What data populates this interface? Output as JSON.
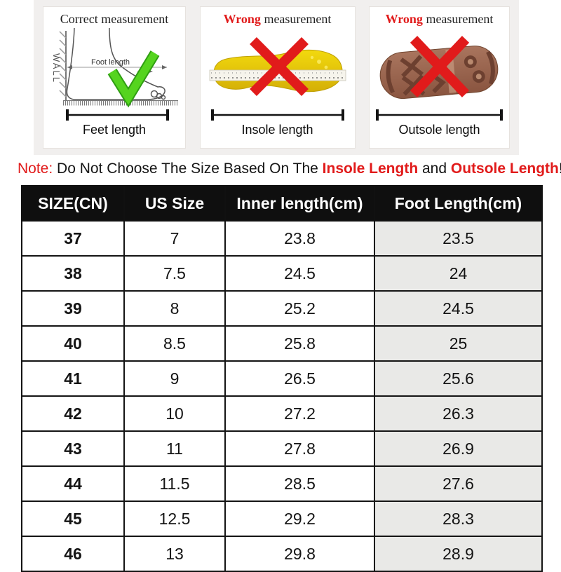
{
  "colors": {
    "accent_red": "#e11b1b",
    "check_green": "#55d41f",
    "check_green_dark": "#2f9e12",
    "insole_yellow": "#f2d90e",
    "insole_yellow_deep": "#d4af06",
    "sole_brown": "#a9755e",
    "sole_brown_dark": "#6d4030",
    "table_header_bg": "#0f0f0f",
    "table_alt_col_bg": "#e9e9e7",
    "band_bg": "#f1efee"
  },
  "panels": [
    {
      "title_prefix": "Correct",
      "title_rest": " measurement",
      "caption": "Feet length",
      "wall_label": "WALL",
      "measure_label": "Foot length"
    },
    {
      "title_prefix": "Wrong",
      "title_rest": " measurement",
      "caption": "Insole length"
    },
    {
      "title_prefix": "Wrong",
      "title_rest": " measurement",
      "caption": "Outsole length"
    }
  ],
  "note": {
    "prefix": "Note:",
    "body": " Do Not Choose The Size Based On The ",
    "highlight1": "Insole Length",
    "mid": " and ",
    "highlight2": "Outsole Length",
    "suffix": "!"
  },
  "table": {
    "columns": [
      "SIZE(CN)",
      "US Size",
      "Inner length(cm)",
      "Foot Length(cm)"
    ],
    "rows": [
      [
        "37",
        "7",
        "23.8",
        "23.5"
      ],
      [
        "38",
        "7.5",
        "24.5",
        "24"
      ],
      [
        "39",
        "8",
        "25.2",
        "24.5"
      ],
      [
        "40",
        "8.5",
        "25.8",
        "25"
      ],
      [
        "41",
        "9",
        "26.5",
        "25.6"
      ],
      [
        "42",
        "10",
        "27.2",
        "26.3"
      ],
      [
        "43",
        "11",
        "27.8",
        "26.9"
      ],
      [
        "44",
        "11.5",
        "28.5",
        "27.6"
      ],
      [
        "45",
        "12.5",
        "29.2",
        "28.3"
      ],
      [
        "46",
        "13",
        "29.8",
        "28.9"
      ]
    ]
  }
}
